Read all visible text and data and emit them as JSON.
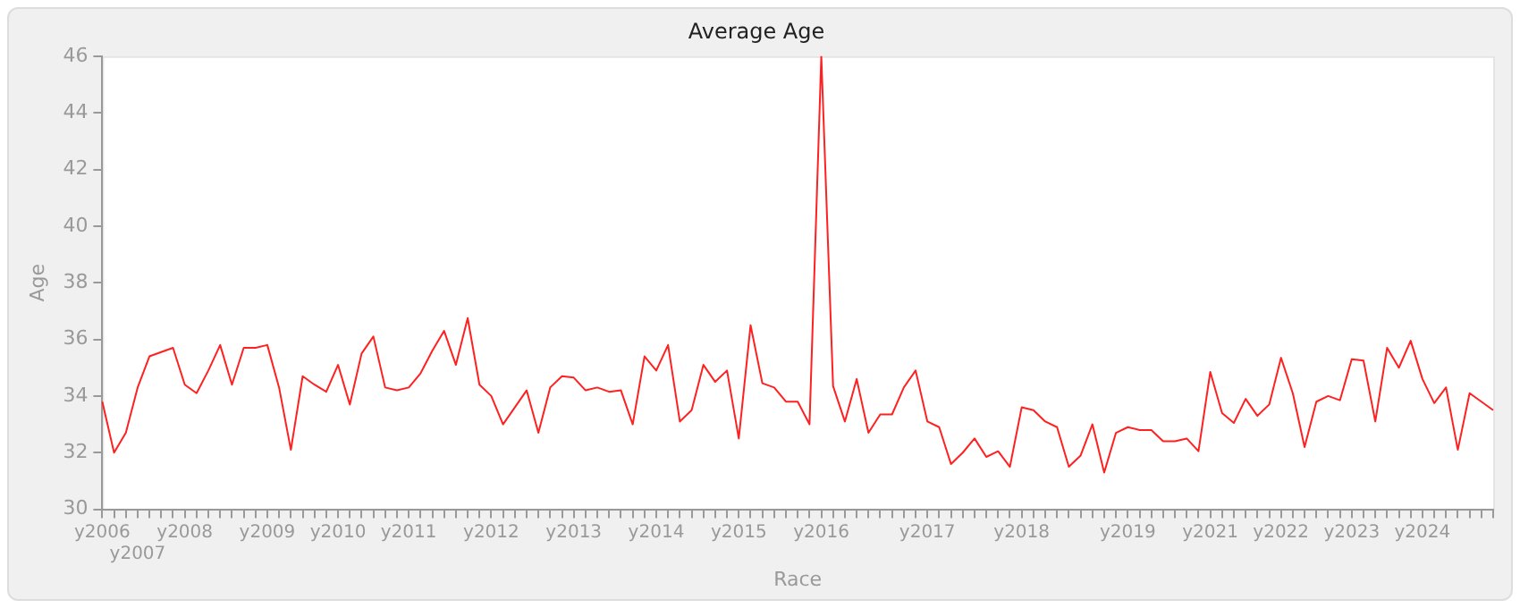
{
  "chart_data": {
    "type": "line",
    "title": "Average Age",
    "xlabel": "Race",
    "ylabel": "Age",
    "categories": [
      "y2006",
      null,
      null,
      "y2007",
      null,
      null,
      null,
      "y2008",
      null,
      null,
      null,
      null,
      null,
      null,
      "y2009",
      null,
      null,
      null,
      null,
      null,
      "y2010",
      null,
      null,
      null,
      null,
      null,
      "y2011",
      null,
      null,
      null,
      null,
      null,
      null,
      "y2012",
      null,
      null,
      null,
      null,
      null,
      null,
      "y2013",
      null,
      null,
      null,
      null,
      null,
      null,
      "y2014",
      null,
      null,
      null,
      null,
      null,
      null,
      "y2015",
      null,
      null,
      null,
      null,
      null,
      null,
      "y2016",
      null,
      null,
      null,
      null,
      null,
      null,
      null,
      null,
      "y2017",
      null,
      null,
      null,
      null,
      null,
      null,
      null,
      "y2018",
      null,
      null,
      null,
      null,
      null,
      null,
      null,
      null,
      "y2019",
      null,
      null,
      null,
      null,
      null,
      null,
      "y2021",
      null,
      null,
      null,
      null,
      null,
      "y2022",
      null,
      null,
      null,
      null,
      null,
      "y2023",
      null,
      null,
      null,
      null,
      null,
      "y2024",
      null,
      null,
      null,
      null,
      null,
      null
    ],
    "series": [
      {
        "color": "#ff2020",
        "values": [
          33.8,
          32.0,
          32.7,
          34.3,
          35.4,
          35.55,
          35.7,
          34.4,
          34.1,
          34.9,
          35.8,
          34.4,
          35.7,
          35.7,
          35.8,
          34.3,
          32.1,
          34.7,
          34.4,
          34.15,
          35.1,
          33.7,
          35.5,
          36.1,
          34.3,
          34.2,
          34.3,
          34.8,
          35.6,
          36.3,
          35.1,
          36.75,
          34.4,
          34.0,
          33.0,
          33.6,
          34.2,
          32.7,
          34.3,
          34.7,
          34.65,
          34.2,
          34.3,
          34.15,
          34.2,
          33.0,
          35.4,
          34.9,
          35.8,
          33.1,
          33.5,
          35.1,
          34.5,
          34.9,
          32.5,
          36.5,
          34.45,
          34.3,
          33.8,
          33.8,
          33.0,
          46.0,
          34.35,
          33.1,
          34.6,
          32.7,
          33.35,
          33.35,
          34.3,
          34.9,
          33.1,
          32.9,
          31.6,
          32.0,
          32.5,
          31.85,
          32.05,
          31.5,
          33.6,
          33.5,
          33.1,
          32.9,
          31.5,
          31.9,
          33.0,
          31.3,
          32.7,
          32.9,
          32.8,
          32.8,
          32.4,
          32.4,
          32.5,
          32.05,
          34.85,
          33.4,
          33.05,
          33.9,
          33.3,
          33.7,
          35.35,
          34.1,
          32.2,
          33.8,
          34.0,
          33.85,
          35.3,
          35.25,
          33.1,
          35.7,
          35.0,
          35.95,
          34.6,
          33.75,
          34.3,
          32.1,
          34.1,
          33.8,
          33.5
        ]
      }
    ],
    "ylim": [
      30,
      46
    ],
    "yticks": [
      30,
      32,
      34,
      36,
      38,
      40,
      42,
      44,
      46
    ],
    "grid": false,
    "legend": false,
    "marker": "none",
    "line_style": "solid"
  }
}
